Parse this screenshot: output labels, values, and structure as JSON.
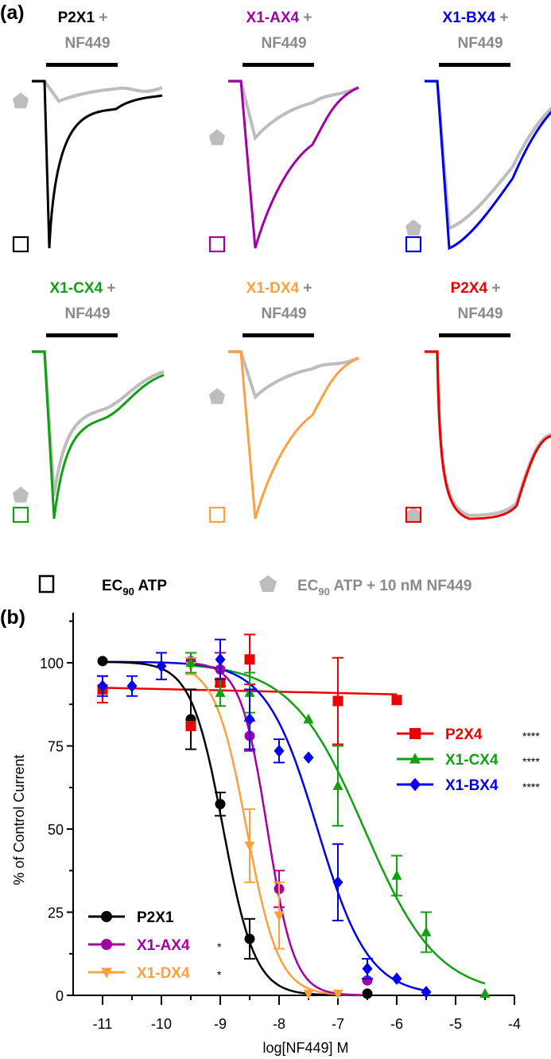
{
  "figure": {
    "panel_a_label": "(a)",
    "panel_b_label": "(b)"
  },
  "panel_a": {
    "traces": [
      {
        "name": "P2X1",
        "plus": "+",
        "drug": "NF449",
        "color": "#000000",
        "control_peak": 1.0,
        "nf449_peak": 0.12,
        "kind": "fast"
      },
      {
        "name": "X1-AX4",
        "plus": "+",
        "drug": "NF449",
        "color": "#a300a3",
        "control_peak": 1.0,
        "nf449_peak": 0.34,
        "kind": "medium"
      },
      {
        "name": "X1-BX4",
        "plus": "+",
        "drug": "NF449",
        "color": "#0000ee",
        "control_peak": 1.0,
        "nf449_peak": 0.88,
        "kind": "slow"
      },
      {
        "name": "X1-CX4",
        "plus": "+",
        "drug": "NF449",
        "color": "#10a010",
        "control_peak": 1.0,
        "nf449_peak": 0.86,
        "kind": "fastslow"
      },
      {
        "name": "X1-DX4",
        "plus": "+",
        "drug": "NF449",
        "color": "#ffa040",
        "control_peak": 1.0,
        "nf449_peak": 0.27,
        "kind": "medium"
      },
      {
        "name": "P2X4",
        "plus": "+",
        "drug": "NF449",
        "color": "#ee0000",
        "control_peak": 1.0,
        "nf449_peak": 0.98,
        "kind": "plateau"
      }
    ],
    "legend": {
      "control_label": "EC",
      "control_sub": "90",
      "control_suffix": " ATP",
      "nf449_label": "EC",
      "nf449_sub": "90",
      "nf449_suffix": " ATP + 10 nM NF449",
      "control_color": "#000000",
      "nf449_color": "#bdbdbd",
      "nf449_text_color": "#8a8a8a"
    }
  },
  "chart_data": {
    "type": "scatter",
    "title": "",
    "xlabel": "log[NF449] M",
    "ylabel": "% of Control Current",
    "xlim": [
      -11.5,
      -4
    ],
    "ylim": [
      0,
      115
    ],
    "xticks": [
      -11,
      -10,
      -9,
      -8,
      -7,
      -6,
      -5,
      -4
    ],
    "xtick_labels": [
      "-11",
      "-10",
      "-9",
      "-8",
      "-7",
      "-6",
      "-5",
      "-4"
    ],
    "yticks": [
      0,
      25,
      50,
      75,
      100
    ],
    "ytick_labels": [
      "0",
      "25",
      "50",
      "75",
      "100"
    ],
    "grid": false,
    "series": [
      {
        "name": "P2X1",
        "color": "#000000",
        "marker": "circle",
        "significance": "",
        "x": [
          -11,
          -9.5,
          -9,
          -8.5,
          -6.5
        ],
        "y": [
          100.5,
          83,
          57.5,
          17,
          0.5
        ],
        "err": [
          0,
          9,
          3.5,
          6,
          0
        ],
        "fit": {
          "top": 100.3,
          "bottom": 0,
          "logIC50": -8.95,
          "hill": 1.6
        }
      },
      {
        "name": "X1-AX4",
        "color": "#a300a3",
        "marker": "circle",
        "significance": "*",
        "x": [
          -9.5,
          -9,
          -8.5,
          -8,
          -6.5
        ],
        "y": [
          100.5,
          98,
          78,
          32,
          4.5
        ],
        "err": [
          0,
          5,
          4.5,
          5.5,
          0
        ],
        "fit": {
          "top": 100.2,
          "bottom": 0,
          "logIC50": -8.2,
          "hill": 1.9
        }
      },
      {
        "name": "X1-DX4",
        "color": "#ffa040",
        "marker": "triangle-down",
        "significance": "*",
        "x": [
          -9.5,
          -8.5,
          -8,
          -7.5,
          -7
        ],
        "y": [
          99,
          45,
          24,
          0.5,
          0.5
        ],
        "err": [
          2.5,
          11,
          10,
          0,
          0
        ],
        "fit": {
          "top": 100,
          "bottom": 0,
          "logIC50": -8.55,
          "hill": 1.6
        }
      },
      {
        "name": "P2X4",
        "color": "#ee0000",
        "marker": "square",
        "significance": "****",
        "x": [
          -11,
          -9.5,
          -9,
          -8.5,
          -7,
          -6
        ],
        "y": [
          92,
          81,
          94,
          101,
          88.5,
          88.8
        ],
        "err": [
          4,
          0,
          0,
          7.5,
          13,
          0
        ],
        "fit": {
          "flat": true,
          "y0": 92.5,
          "y1": 90.5,
          "x0": -11,
          "x1": -6
        }
      },
      {
        "name": "X1-CX4",
        "color": "#10a010",
        "marker": "triangle-up",
        "significance": "****",
        "x": [
          -9.5,
          -9,
          -8.5,
          -7.5,
          -7,
          -6,
          -5.5,
          -4.5
        ],
        "y": [
          100,
          91,
          91,
          83,
          63,
          36,
          19,
          0.5
        ],
        "err": [
          3,
          4,
          6,
          0,
          12,
          6,
          6,
          0
        ],
        "fit": {
          "top": 100,
          "bottom": 0,
          "logIC50": -6.55,
          "hill": 0.7
        }
      },
      {
        "name": "X1-BX4",
        "color": "#0000ee",
        "marker": "diamond",
        "significance": "****",
        "x": [
          -11,
          -10.5,
          -10,
          -9,
          -8.5,
          -8,
          -7.5,
          -7,
          -6.5,
          -6,
          -5.5
        ],
        "y": [
          93,
          93,
          99,
          101,
          83,
          73.5,
          71.5,
          34,
          8,
          5,
          1
        ],
        "err": [
          3,
          3,
          4,
          6,
          9,
          3.5,
          0,
          11.5,
          3,
          0,
          0
        ],
        "fit": {
          "top": 100.3,
          "bottom": 0,
          "logIC50": -7.35,
          "hill": 1.0
        }
      }
    ],
    "legend_left": [
      "P2X1",
      "X1-AX4",
      "X1-DX4"
    ],
    "legend_right": [
      "P2X4",
      "X1-CX4",
      "X1-BX4"
    ]
  }
}
